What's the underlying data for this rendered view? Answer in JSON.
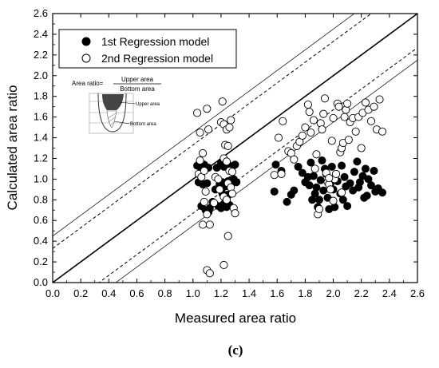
{
  "chart_data": {
    "type": "scatter",
    "xlabel": "Measured area ratio",
    "ylabel": "Calculated area ratio",
    "xlim": [
      0.0,
      2.6
    ],
    "ylim": [
      0.0,
      2.6
    ],
    "tick_step": 0.2,
    "grid": false,
    "legend_position": "top-left",
    "panel_label": "(c)",
    "series": [
      {
        "name": "1st Regression model",
        "marker": "filled-circle",
        "color": "#000000",
        "points": [
          [
            1.03,
            1.13
          ],
          [
            1.05,
            1.12
          ],
          [
            1.08,
            1.14
          ],
          [
            1.11,
            1.11
          ],
          [
            1.04,
            0.97
          ],
          [
            1.07,
            0.95
          ],
          [
            1.1,
            0.96
          ],
          [
            1.06,
            0.74
          ],
          [
            1.09,
            0.7
          ],
          [
            1.12,
            0.72
          ],
          [
            1.14,
            0.78
          ],
          [
            1.11,
            0.68
          ],
          [
            1.17,
            1.11
          ],
          [
            1.2,
            1.16
          ],
          [
            1.22,
            1.12
          ],
          [
            1.24,
            1.15
          ],
          [
            1.26,
            1.13
          ],
          [
            1.28,
            1.12
          ],
          [
            1.19,
            0.95
          ],
          [
            1.21,
            0.97
          ],
          [
            1.23,
            0.93
          ],
          [
            1.25,
            0.98
          ],
          [
            1.27,
            0.99
          ],
          [
            1.29,
            1.0
          ],
          [
            1.18,
            0.74
          ],
          [
            1.2,
            0.72
          ],
          [
            1.22,
            0.76
          ],
          [
            1.24,
            0.73
          ],
          [
            1.26,
            0.75
          ],
          [
            1.21,
            0.86
          ],
          [
            1.25,
            0.85
          ],
          [
            1.16,
            0.9
          ],
          [
            1.3,
            1.14
          ],
          [
            1.31,
            0.97
          ],
          [
            1.59,
            1.14
          ],
          [
            1.63,
            1.08
          ],
          [
            1.58,
            0.88
          ],
          [
            1.67,
            0.78
          ],
          [
            1.7,
            0.85
          ],
          [
            1.72,
            0.89
          ],
          [
            1.75,
            1.12
          ],
          [
            1.78,
            1.06
          ],
          [
            1.8,
            0.97
          ],
          [
            1.82,
            1.02
          ],
          [
            1.84,
            1.16
          ],
          [
            1.86,
            1.03
          ],
          [
            1.87,
            0.86
          ],
          [
            1.88,
            0.92
          ],
          [
            1.89,
            0.73
          ],
          [
            1.9,
            0.8
          ],
          [
            1.91,
            0.99
          ],
          [
            1.93,
            0.89
          ],
          [
            1.94,
            1.1
          ],
          [
            1.95,
            1.05
          ],
          [
            1.96,
            0.82
          ],
          [
            1.97,
            0.71
          ],
          [
            1.98,
            0.96
          ],
          [
            1.99,
            1.12
          ],
          [
            2.0,
            0.9
          ],
          [
            2.01,
            0.73
          ],
          [
            2.02,
            1.05
          ],
          [
            2.03,
            0.98
          ],
          [
            2.05,
            0.86
          ],
          [
            2.06,
            1.13
          ],
          [
            2.08,
            1.02
          ],
          [
            2.09,
            0.93
          ],
          [
            2.1,
            0.74
          ],
          [
            2.12,
            0.96
          ],
          [
            2.14,
            0.89
          ],
          [
            2.15,
            1.07
          ],
          [
            2.17,
            1.17
          ],
          [
            2.18,
            0.92
          ],
          [
            2.19,
            0.97
          ],
          [
            2.21,
            1.03
          ],
          [
            2.22,
            0.82
          ],
          [
            2.23,
            1.1
          ],
          [
            2.25,
            1.0
          ],
          [
            2.27,
            0.94
          ],
          [
            2.29,
            1.08
          ],
          [
            2.3,
            0.88
          ],
          [
            2.32,
            0.91
          ],
          [
            2.35,
            0.87
          ],
          [
            1.85,
            0.8
          ],
          [
            1.92,
            1.18
          ],
          [
            2.07,
            0.8
          ],
          [
            1.83,
            0.94
          ],
          [
            2.24,
            0.84
          ]
        ]
      },
      {
        "name": "2nd Regression model",
        "marker": "open-circle",
        "color": "#000000",
        "points": [
          [
            1.03,
            1.64
          ],
          [
            1.05,
            1.45
          ],
          [
            1.07,
            1.25
          ],
          [
            1.05,
            1.18
          ],
          [
            1.04,
            1.05
          ],
          [
            1.06,
            1.02
          ],
          [
            1.08,
            1.08
          ],
          [
            1.09,
            0.88
          ],
          [
            1.08,
            0.78
          ],
          [
            1.1,
            0.66
          ],
          [
            1.07,
            0.56
          ],
          [
            1.12,
            0.56
          ],
          [
            1.1,
            0.12
          ],
          [
            1.12,
            0.09
          ],
          [
            1.11,
            1.48
          ],
          [
            1.1,
            1.68
          ],
          [
            1.16,
            1.02
          ],
          [
            1.18,
            1.0
          ],
          [
            1.2,
            1.55
          ],
          [
            1.22,
            1.53
          ],
          [
            1.21,
            1.75
          ],
          [
            1.24,
            1.48
          ],
          [
            1.23,
            1.33
          ],
          [
            1.25,
            1.32
          ],
          [
            1.26,
            1.5
          ],
          [
            1.27,
            1.57
          ],
          [
            1.22,
            1.2
          ],
          [
            1.24,
            1.17
          ],
          [
            1.26,
            1.08
          ],
          [
            1.28,
            1.07
          ],
          [
            1.25,
            0.96
          ],
          [
            1.27,
            0.92
          ],
          [
            1.22,
            0.83
          ],
          [
            1.24,
            0.8
          ],
          [
            1.29,
            0.72
          ],
          [
            1.3,
            0.67
          ],
          [
            1.25,
            0.45
          ],
          [
            1.22,
            0.17
          ],
          [
            1.28,
            0.86
          ],
          [
            1.19,
            0.9
          ],
          [
            1.15,
            0.77
          ],
          [
            1.58,
            1.04
          ],
          [
            1.63,
            1.05
          ],
          [
            1.61,
            1.4
          ],
          [
            1.64,
            1.56
          ],
          [
            1.68,
            1.27
          ],
          [
            1.7,
            1.25
          ],
          [
            1.72,
            1.19
          ],
          [
            1.74,
            1.32
          ],
          [
            1.76,
            1.36
          ],
          [
            1.78,
            1.42
          ],
          [
            1.8,
            1.5
          ],
          [
            1.82,
            1.72
          ],
          [
            1.83,
            1.65
          ],
          [
            1.84,
            1.45
          ],
          [
            1.86,
            1.57
          ],
          [
            1.87,
            1.1
          ],
          [
            1.88,
            1.24
          ],
          [
            1.89,
            0.66
          ],
          [
            1.9,
            0.71
          ],
          [
            1.91,
            1.54
          ],
          [
            1.92,
            1.48
          ],
          [
            1.93,
            1.63
          ],
          [
            1.94,
            1.78
          ],
          [
            1.95,
            1.06
          ],
          [
            1.96,
            0.97
          ],
          [
            1.97,
            0.95
          ],
          [
            1.98,
            0.9
          ],
          [
            1.99,
            1.37
          ],
          [
            2.0,
            1.59
          ],
          [
            2.01,
            1.0
          ],
          [
            2.02,
            1.05
          ],
          [
            2.03,
            1.73
          ],
          [
            2.04,
            1.7
          ],
          [
            2.05,
            1.26
          ],
          [
            2.06,
            1.3
          ],
          [
            2.07,
            1.35
          ],
          [
            2.08,
            1.6
          ],
          [
            2.09,
            1.67
          ],
          [
            2.1,
            1.73
          ],
          [
            2.11,
            1.38
          ],
          [
            2.12,
            1.55
          ],
          [
            2.14,
            1.59
          ],
          [
            2.16,
            1.46
          ],
          [
            2.18,
            1.6
          ],
          [
            2.2,
            1.3
          ],
          [
            2.21,
            1.64
          ],
          [
            2.23,
            1.74
          ],
          [
            2.25,
            1.67
          ],
          [
            2.27,
            1.56
          ],
          [
            2.29,
            1.7
          ],
          [
            2.31,
            1.48
          ],
          [
            2.33,
            1.77
          ],
          [
            2.35,
            1.46
          ],
          [
            2.06,
            0.87
          ],
          [
            2.0,
            0.79
          ],
          [
            1.97,
            1.01
          ]
        ]
      }
    ],
    "lines": [
      {
        "kind": "solid-thick",
        "intercept": 0.0
      },
      {
        "kind": "dashed",
        "intercept": 0.33
      },
      {
        "kind": "dashed",
        "intercept": -0.33
      },
      {
        "kind": "solid-thin",
        "intercept": 0.45
      },
      {
        "kind": "solid-thin",
        "intercept": -0.45
      }
    ]
  },
  "inset": {
    "formula_lhs": "Area ratio=",
    "numerator": "Upper area",
    "denominator": "Bottom area",
    "upper_label": "Upper area",
    "bottom_label": "Bottom area"
  }
}
